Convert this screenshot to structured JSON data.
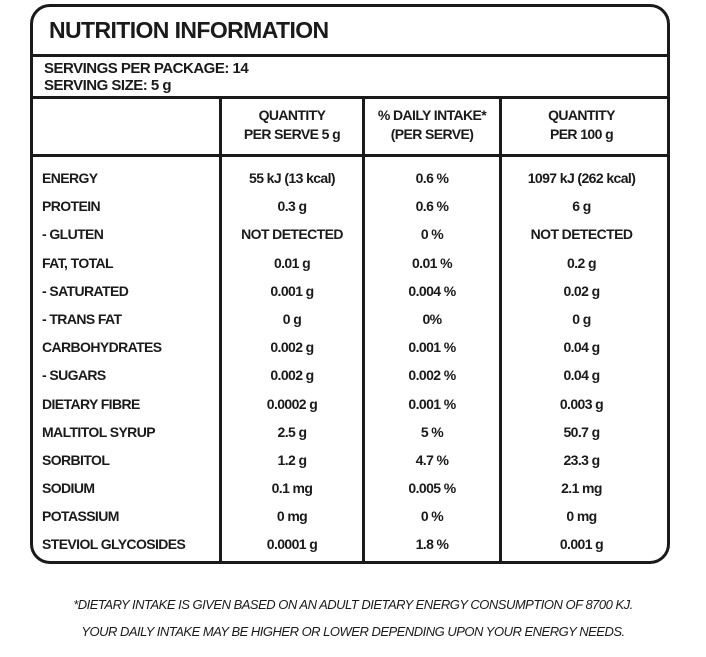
{
  "title": "NUTRITION INFORMATION",
  "servings_per_package": "SERVINGS PER PACKAGE: 14",
  "serving_size": "SERVING SIZE: 5 g",
  "headers": {
    "col1": [
      "QUANTITY",
      "PER SERVE 5 g"
    ],
    "col2": [
      "% DAILY INTAKE*",
      "(PER SERVE)"
    ],
    "col3": [
      "QUANTITY",
      "PER 100 g"
    ]
  },
  "rows": [
    {
      "name": "ENERGY",
      "per_serve": "55 kJ (13 kcal)",
      "daily": "0.6 %",
      "per_100g": "1097 kJ (262 kcal)"
    },
    {
      "name": "PROTEIN",
      "per_serve": "0.3 g",
      "daily": "0.6 %",
      "per_100g": "6 g"
    },
    {
      "name": "- GLUTEN",
      "per_serve": "NOT DETECTED",
      "daily": "0 %",
      "per_100g": "NOT DETECTED"
    },
    {
      "name": "FAT, TOTAL",
      "per_serve": "0.01 g",
      "daily": "0.01 %",
      "per_100g": "0.2 g"
    },
    {
      "name": "- SATURATED",
      "per_serve": "0.001 g",
      "daily": "0.004 %",
      "per_100g": "0.02 g"
    },
    {
      "name": "- TRANS FAT",
      "per_serve": "0 g",
      "daily": "0%",
      "per_100g": "0 g"
    },
    {
      "name": "CARBOHYDRATES",
      "per_serve": "0.002 g",
      "daily": "0.001 %",
      "per_100g": "0.04 g"
    },
    {
      "name": "- SUGARS",
      "per_serve": "0.002 g",
      "daily": "0.002 %",
      "per_100g": "0.04 g"
    },
    {
      "name": "DIETARY FIBRE",
      "per_serve": "0.0002 g",
      "daily": "0.001 %",
      "per_100g": "0.003 g"
    },
    {
      "name": "MALTITOL SYRUP",
      "per_serve": "2.5 g",
      "daily": "5 %",
      "per_100g": "50.7 g"
    },
    {
      "name": "SORBITOL",
      "per_serve": "1.2 g",
      "daily": "4.7 %",
      "per_100g": "23.3 g"
    },
    {
      "name": "SODIUM",
      "per_serve": "0.1 mg",
      "daily": "0.005 %",
      "per_100g": "2.1 mg"
    },
    {
      "name": "POTASSIUM",
      "per_serve": "0 mg",
      "daily": "0 %",
      "per_100g": "0 mg"
    },
    {
      "name": "STEVIOL GLYCOSIDES",
      "per_serve": "0.0001 g",
      "daily": "1.8 %",
      "per_100g": "0.001 g"
    }
  ],
  "footnote": [
    "*DIETARY INTAKE IS GIVEN BASED ON AN ADULT DIETARY ENERGY CONSUMPTION OF 8700 KJ.",
    "YOUR DAILY INTAKE MAY BE HIGHER OR LOWER DEPENDING UPON YOUR ENERGY NEEDS."
  ]
}
